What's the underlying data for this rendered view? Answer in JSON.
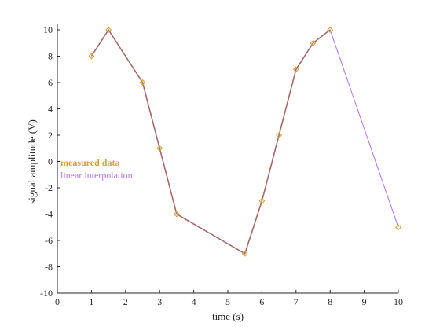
{
  "chart_data": {
    "type": "line",
    "title": "",
    "xlabel": "time (s)",
    "ylabel": "signal amplitude (V)",
    "xlim": [
      0,
      10
    ],
    "ylim": [
      -10,
      10
    ],
    "xticks": [
      0,
      1,
      2,
      3,
      4,
      5,
      6,
      7,
      8,
      9,
      10
    ],
    "yticks": [
      -10,
      -8,
      -6,
      -4,
      -2,
      0,
      2,
      4,
      6,
      8,
      10
    ],
    "grid": false,
    "legend_position": "center-left",
    "series": [
      {
        "name": "measured data",
        "style": "markers",
        "marker": "diamond",
        "color": "#D4A43A",
        "x": [
          1,
          1.5,
          2.5,
          3,
          3.5,
          5.5,
          6,
          6.5,
          7,
          7.5,
          8,
          10
        ],
        "y": [
          8,
          10,
          6,
          1,
          -4,
          -7,
          -3,
          2,
          7,
          9,
          10,
          -5
        ]
      },
      {
        "name": "linear interpolation",
        "style": "line",
        "color": "#B86FE0",
        "x": [
          1,
          1.5,
          2.5,
          3,
          3.5,
          5.5,
          6,
          6.5,
          7,
          7.5,
          8,
          10
        ],
        "y": [
          8,
          10,
          6,
          1,
          -4,
          -7,
          -3,
          2,
          7,
          9,
          10,
          -5
        ]
      },
      {
        "name": "",
        "style": "line",
        "color": "#A36A6A",
        "x": [
          1,
          1.5,
          2,
          2.5,
          3,
          3.5,
          5.5,
          6,
          6.5,
          7,
          7.5,
          8
        ],
        "y": [
          8,
          10,
          8,
          6,
          1,
          -4,
          -7,
          -3,
          2,
          7,
          9,
          10
        ]
      }
    ]
  }
}
